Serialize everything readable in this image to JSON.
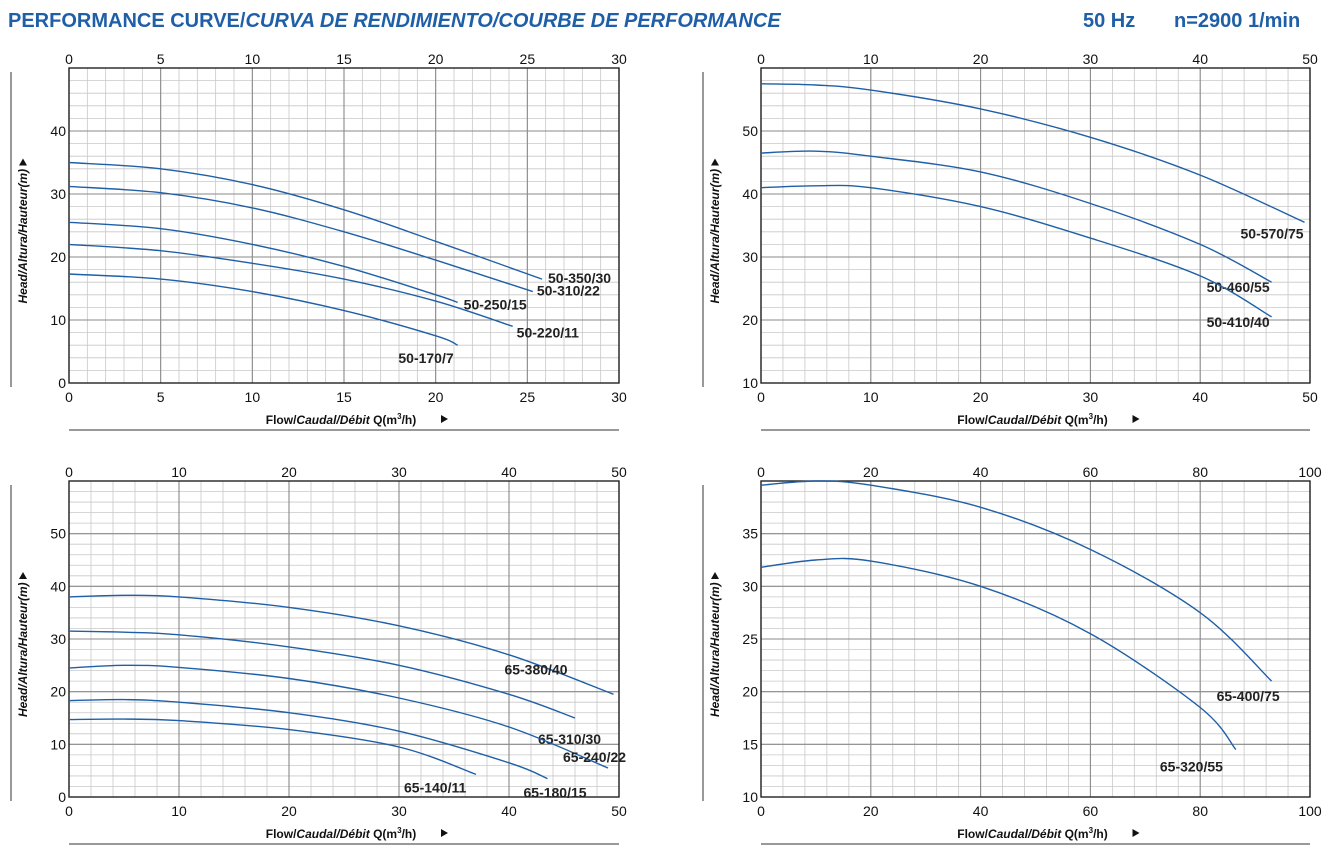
{
  "header": {
    "title_a": "PERFORMANCE CURVE/",
    "title_b": "CURVA DE RENDIMIENTO/COURBE DE PERFORMANCE",
    "frequency": "50 Hz",
    "speed": "n=2900 1/min"
  },
  "axis_text": {
    "ylabel": "Head/Altura/Hauteur(m)",
    "xlabel_a": "Flow/",
    "xlabel_b": "Caudal/Débit",
    "xlabel_c": " Q(m",
    "xlabel_sup": "3",
    "xlabel_d": "/h)"
  },
  "colors": {
    "curve": "#1f5fa7",
    "grid_major": "#8a8a8a",
    "grid_minor": "#c8c8c8",
    "header": "#1f5fa7"
  },
  "chart_data": [
    {
      "type": "line",
      "xlim": [
        0,
        30
      ],
      "ylim": [
        0,
        50
      ],
      "xticks": [
        0,
        5,
        10,
        15,
        20,
        25,
        30
      ],
      "yticks": [
        0,
        10,
        20,
        30,
        40
      ],
      "grid": true,
      "series": [
        {
          "name": "50-350/30",
          "x": [
            0,
            5,
            10,
            15,
            20,
            25.8
          ],
          "y": [
            35,
            34,
            31.5,
            27.5,
            22.5,
            16.5
          ]
        },
        {
          "name": "50-310/22",
          "x": [
            0,
            5,
            10,
            15,
            20,
            25.3
          ],
          "y": [
            31.2,
            30.2,
            27.8,
            24,
            19.5,
            14.5
          ]
        },
        {
          "name": "50-250/15",
          "x": [
            0,
            5,
            10,
            15,
            20,
            21.2
          ],
          "y": [
            25.5,
            24.5,
            22,
            18.5,
            14,
            12.8
          ]
        },
        {
          "name": "50-220/11",
          "x": [
            0,
            5,
            10,
            15,
            20,
            24.2
          ],
          "y": [
            22,
            21,
            19,
            16.5,
            13,
            9
          ]
        },
        {
          "name": "50-170/7",
          "x": [
            0,
            5,
            10,
            15,
            20,
            21.2
          ],
          "y": [
            17.3,
            16.5,
            14.5,
            11.5,
            7.5,
            6
          ]
        }
      ]
    },
    {
      "type": "line",
      "xlim": [
        0,
        50
      ],
      "ylim": [
        10,
        60
      ],
      "xticks": [
        0,
        10,
        20,
        30,
        40,
        50
      ],
      "yticks": [
        10,
        20,
        30,
        40,
        50
      ],
      "grid": true,
      "series": [
        {
          "name": "50-570/75",
          "x": [
            0,
            5,
            10,
            20,
            30,
            40,
            49.5
          ],
          "y": [
            57.5,
            57.3,
            56.5,
            53.5,
            49,
            43,
            35.5
          ]
        },
        {
          "name": "50-460/55",
          "x": [
            0,
            5,
            10,
            20,
            30,
            40,
            46.5
          ],
          "y": [
            46.5,
            46.8,
            46,
            43.5,
            38.5,
            32,
            26
          ]
        },
        {
          "name": "50-410/40",
          "x": [
            0,
            5,
            10,
            20,
            30,
            40,
            46.5
          ],
          "y": [
            41,
            41.3,
            41,
            38,
            33,
            27,
            20.5
          ]
        }
      ]
    },
    {
      "type": "line",
      "xlim": [
        0,
        50
      ],
      "ylim": [
        0,
        60
      ],
      "xticks": [
        0,
        10,
        20,
        30,
        40,
        50
      ],
      "yticks": [
        0,
        10,
        20,
        30,
        40,
        50
      ],
      "grid": true,
      "series": [
        {
          "name": "65-380/40",
          "x": [
            0,
            5,
            10,
            20,
            30,
            40,
            49.5
          ],
          "y": [
            38,
            38.3,
            38,
            36,
            32.5,
            27,
            19.5
          ]
        },
        {
          "name": "65-310/30",
          "x": [
            0,
            5,
            10,
            20,
            30,
            40,
            46
          ],
          "y": [
            31.5,
            31.3,
            30.8,
            28.5,
            25,
            19.5,
            15
          ]
        },
        {
          "name": "65-240/22",
          "x": [
            0,
            5,
            10,
            20,
            30,
            40,
            49
          ],
          "y": [
            24.5,
            25,
            24.6,
            22.5,
            18.8,
            13.3,
            5.5
          ]
        },
        {
          "name": "65-180/15",
          "x": [
            0,
            5,
            10,
            20,
            30,
            40,
            43.5
          ],
          "y": [
            18.3,
            18.5,
            18,
            16,
            12.5,
            6.5,
            3.5
          ]
        },
        {
          "name": "65-140/11",
          "x": [
            0,
            5,
            10,
            20,
            30,
            37
          ],
          "y": [
            14.7,
            14.8,
            14.5,
            12.8,
            9.5,
            4.3
          ]
        }
      ]
    },
    {
      "type": "line",
      "xlim": [
        0,
        100
      ],
      "ylim": [
        10,
        40
      ],
      "xticks": [
        0,
        20,
        40,
        60,
        80,
        100
      ],
      "yticks": [
        10,
        15,
        20,
        25,
        30,
        35
      ],
      "grid": true,
      "series": [
        {
          "name": "65-400/75",
          "x": [
            0,
            10,
            20,
            40,
            60,
            80,
            93
          ],
          "y": [
            39.6,
            40,
            39.6,
            37.5,
            33.5,
            27.5,
            21
          ]
        },
        {
          "name": "65-320/55",
          "x": [
            0,
            10,
            20,
            40,
            60,
            80,
            86.5
          ],
          "y": [
            31.8,
            32.5,
            32.4,
            30,
            25.5,
            18.5,
            14.5
          ]
        }
      ]
    }
  ]
}
